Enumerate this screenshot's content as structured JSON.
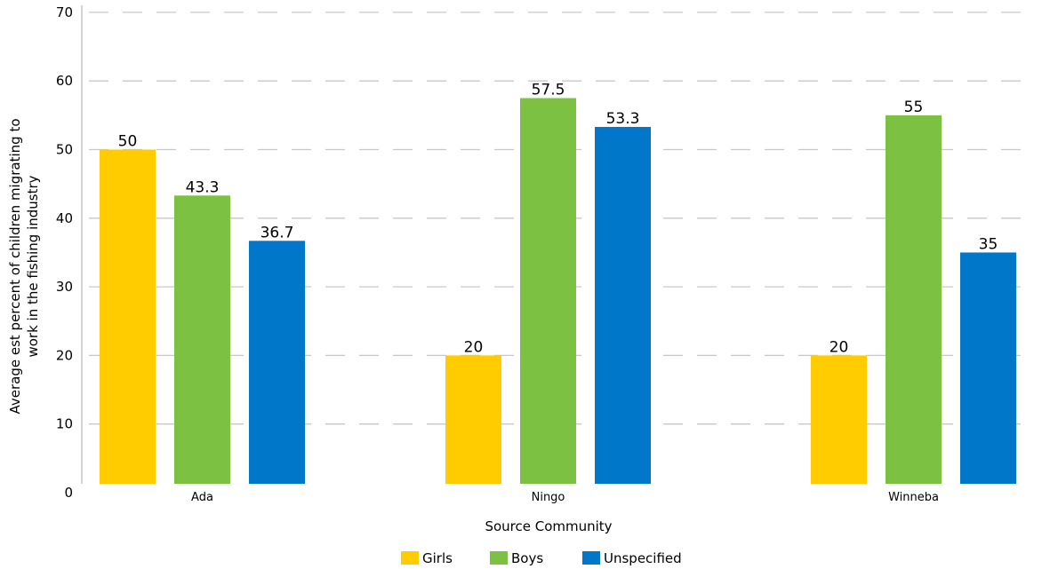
{
  "chart_data": {
    "type": "bar",
    "xlabel": "Source Community",
    "ylabel": [
      "Average est percent of children migrating to",
      "work in the fishing industry"
    ],
    "categories": [
      "Ada",
      "Ningo",
      "Winneba"
    ],
    "series": [
      {
        "name": "Girls",
        "color": "#FFCC00",
        "values": [
          50,
          20,
          20
        ]
      },
      {
        "name": "Boys",
        "color": "#7DC142",
        "values": [
          43.3,
          57.5,
          55
        ]
      },
      {
        "name": "Unspecified",
        "color": "#0077C8",
        "values": [
          36.7,
          53.3,
          35
        ]
      }
    ],
    "yticks": [
      "0",
      "10",
      "20",
      "30",
      "40",
      "50",
      "60",
      "70"
    ],
    "ylim": [
      0,
      70
    ],
    "grid": true,
    "legend_position": "bottom"
  }
}
